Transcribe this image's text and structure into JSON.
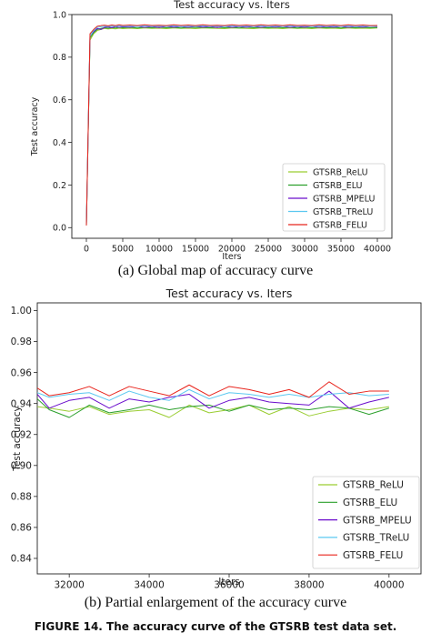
{
  "captions": {
    "a": "(a) Global map of accuracy curve",
    "b": "(b) Partial enlargement of the accuracy curve",
    "figure": "FIGURE 14. The accuracy curve of the GTSRB test data set."
  },
  "chart_data": [
    {
      "type": "line",
      "title": "Test accuracy  vs. Iters",
      "xlabel": "Iters",
      "ylabel": "Test accuracy",
      "xlim": [
        -2000,
        42000
      ],
      "ylim": [
        -0.05,
        1.0
      ],
      "xticks": [
        0,
        5000,
        10000,
        15000,
        20000,
        25000,
        30000,
        35000,
        40000
      ],
      "yticks": [
        0.0,
        0.2,
        0.4,
        0.6,
        0.8,
        1.0
      ],
      "yprecision": 1,
      "grid": false,
      "legend_position": "bottom-right",
      "x": [
        0,
        500,
        1000,
        1500,
        2000,
        2500,
        3000,
        3500,
        4000,
        4500,
        5000,
        6000,
        7000,
        8000,
        9000,
        10000,
        11000,
        12000,
        13000,
        14000,
        15000,
        16000,
        17000,
        18000,
        19000,
        20000,
        21000,
        22000,
        23000,
        24000,
        25000,
        26000,
        27000,
        28000,
        29000,
        30000,
        31000,
        32000,
        33000,
        34000,
        35000,
        36000,
        37000,
        38000,
        39000,
        40000
      ],
      "series": [
        {
          "name": "GTSRB_ReLU",
          "color": "#9acd32",
          "values": [
            0.01,
            0.88,
            0.91,
            0.925,
            0.93,
            0.935,
            0.932,
            0.935,
            0.933,
            0.936,
            0.934,
            0.936,
            0.934,
            0.937,
            0.935,
            0.936,
            0.934,
            0.937,
            0.935,
            0.936,
            0.934,
            0.937,
            0.936,
            0.935,
            0.934,
            0.937,
            0.936,
            0.935,
            0.934,
            0.937,
            0.935,
            0.936,
            0.934,
            0.937,
            0.935,
            0.936,
            0.934,
            0.937,
            0.935,
            0.936,
            0.934,
            0.937,
            0.935,
            0.936,
            0.935,
            0.937
          ]
        },
        {
          "name": "GTSRB_ELU",
          "color": "#2ca02c",
          "values": [
            0.01,
            0.89,
            0.915,
            0.93,
            0.935,
            0.938,
            0.936,
            0.939,
            0.937,
            0.94,
            0.938,
            0.94,
            0.937,
            0.94,
            0.938,
            0.941,
            0.938,
            0.94,
            0.937,
            0.94,
            0.939,
            0.94,
            0.938,
            0.941,
            0.938,
            0.94,
            0.937,
            0.941,
            0.938,
            0.94,
            0.938,
            0.941,
            0.938,
            0.94,
            0.937,
            0.94,
            0.938,
            0.941,
            0.938,
            0.94,
            0.937,
            0.941,
            0.938,
            0.94,
            0.938,
            0.939
          ]
        },
        {
          "name": "GTSRB_MPELU",
          "color": "#6a0dcc",
          "values": [
            0.01,
            0.9,
            0.92,
            0.935,
            0.93,
            0.94,
            0.942,
            0.938,
            0.944,
            0.94,
            0.943,
            0.941,
            0.945,
            0.94,
            0.944,
            0.939,
            0.945,
            0.941,
            0.944,
            0.94,
            0.945,
            0.941,
            0.944,
            0.939,
            0.945,
            0.94,
            0.944,
            0.941,
            0.945,
            0.94,
            0.944,
            0.941,
            0.945,
            0.94,
            0.944,
            0.941,
            0.945,
            0.94,
            0.944,
            0.941,
            0.945,
            0.94,
            0.944,
            0.941,
            0.945,
            0.944
          ]
        },
        {
          "name": "GTSRB_TReLU",
          "color": "#5bc8f0",
          "values": [
            0.01,
            0.9,
            0.925,
            0.94,
            0.943,
            0.945,
            0.944,
            0.946,
            0.945,
            0.947,
            0.945,
            0.946,
            0.944,
            0.947,
            0.945,
            0.946,
            0.945,
            0.947,
            0.944,
            0.946,
            0.945,
            0.947,
            0.945,
            0.946,
            0.944,
            0.947,
            0.945,
            0.946,
            0.945,
            0.947,
            0.944,
            0.946,
            0.945,
            0.947,
            0.945,
            0.946,
            0.944,
            0.947,
            0.945,
            0.946,
            0.945,
            0.947,
            0.944,
            0.946,
            0.945,
            0.946
          ]
        },
        {
          "name": "GTSRB_FELU",
          "color": "#e8241c",
          "values": [
            0.01,
            0.91,
            0.93,
            0.945,
            0.948,
            0.95,
            0.947,
            0.951,
            0.948,
            0.952,
            0.949,
            0.951,
            0.948,
            0.952,
            0.949,
            0.95,
            0.948,
            0.952,
            0.949,
            0.951,
            0.948,
            0.952,
            0.949,
            0.95,
            0.948,
            0.952,
            0.949,
            0.951,
            0.948,
            0.952,
            0.949,
            0.951,
            0.948,
            0.952,
            0.949,
            0.95,
            0.948,
            0.952,
            0.949,
            0.951,
            0.948,
            0.952,
            0.949,
            0.951,
            0.948,
            0.949
          ]
        }
      ]
    },
    {
      "type": "line",
      "title": "Test accuracy  vs. Iters",
      "xlabel": "Iters",
      "ylabel": "Test accuracy",
      "xlim": [
        31200,
        40800
      ],
      "ylim": [
        0.83,
        1.005
      ],
      "xticks": [
        32000,
        34000,
        36000,
        38000,
        40000
      ],
      "yticks": [
        0.84,
        0.86,
        0.88,
        0.9,
        0.92,
        0.94,
        0.96,
        0.98,
        1.0
      ],
      "yprecision": 2,
      "grid": false,
      "legend_position": "bottom-right",
      "x": [
        31200,
        31500,
        32000,
        32500,
        33000,
        33500,
        34000,
        34500,
        35000,
        35500,
        36000,
        36500,
        37000,
        37500,
        38000,
        38500,
        39000,
        39500,
        40000
      ],
      "series": [
        {
          "name": "GTSRB_ReLU",
          "color": "#9acd32",
          "values": [
            0.938,
            0.937,
            0.935,
            0.938,
            0.933,
            0.935,
            0.936,
            0.931,
            0.939,
            0.934,
            0.936,
            0.939,
            0.933,
            0.938,
            0.932,
            0.935,
            0.937,
            0.936,
            0.938
          ]
        },
        {
          "name": "GTSRB_ELU",
          "color": "#2ca02c",
          "values": [
            0.943,
            0.936,
            0.931,
            0.939,
            0.934,
            0.936,
            0.939,
            0.936,
            0.938,
            0.939,
            0.935,
            0.939,
            0.936,
            0.937,
            0.936,
            0.938,
            0.937,
            0.933,
            0.937
          ]
        },
        {
          "name": "GTSRB_MPELU",
          "color": "#6a0dcc",
          "values": [
            0.946,
            0.937,
            0.942,
            0.944,
            0.937,
            0.943,
            0.941,
            0.944,
            0.946,
            0.937,
            0.942,
            0.944,
            0.941,
            0.94,
            0.939,
            0.948,
            0.937,
            0.941,
            0.944
          ]
        },
        {
          "name": "GTSRB_TReLU",
          "color": "#5bc8f0",
          "values": [
            0.947,
            0.944,
            0.946,
            0.947,
            0.942,
            0.948,
            0.944,
            0.942,
            0.949,
            0.943,
            0.947,
            0.946,
            0.944,
            0.946,
            0.944,
            0.946,
            0.947,
            0.945,
            0.946
          ]
        },
        {
          "name": "GTSRB_FELU",
          "color": "#e8241c",
          "values": [
            0.95,
            0.945,
            0.947,
            0.951,
            0.945,
            0.951,
            0.948,
            0.945,
            0.952,
            0.945,
            0.951,
            0.949,
            0.946,
            0.949,
            0.944,
            0.954,
            0.946,
            0.948,
            0.948
          ]
        }
      ]
    }
  ]
}
